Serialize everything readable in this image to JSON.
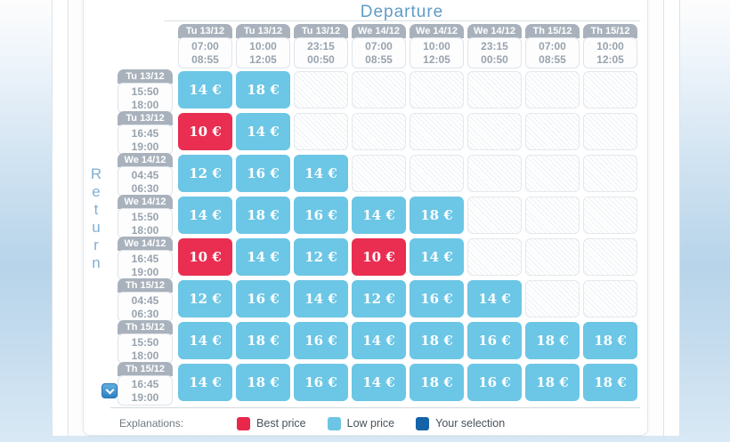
{
  "title": "Departure",
  "return_label": "Return",
  "departures": [
    {
      "date": "Tu 13/12",
      "start": "07:00",
      "end": "08:55"
    },
    {
      "date": "Tu 13/12",
      "start": "10:00",
      "end": "12:05"
    },
    {
      "date": "Tu 13/12",
      "start": "23:15",
      "end": "00:50"
    },
    {
      "date": "We 14/12",
      "start": "07:00",
      "end": "08:55"
    },
    {
      "date": "We 14/12",
      "start": "10:00",
      "end": "12:05"
    },
    {
      "date": "We 14/12",
      "start": "23:15",
      "end": "00:50"
    },
    {
      "date": "Th 15/12",
      "start": "07:00",
      "end": "08:55"
    },
    {
      "date": "Th 15/12",
      "start": "10:00",
      "end": "12:05"
    }
  ],
  "returns": [
    {
      "date": "Tu 13/12",
      "start": "15:50",
      "end": "18:00"
    },
    {
      "date": "Tu 13/12",
      "start": "16:45",
      "end": "19:00"
    },
    {
      "date": "We 14/12",
      "start": "04:45",
      "end": "06:30"
    },
    {
      "date": "We 14/12",
      "start": "15:50",
      "end": "18:00"
    },
    {
      "date": "We 14/12",
      "start": "16:45",
      "end": "19:00"
    },
    {
      "date": "Th 15/12",
      "start": "04:45",
      "end": "06:30"
    },
    {
      "date": "Th 15/12",
      "start": "15:50",
      "end": "18:00"
    },
    {
      "date": "Th 15/12",
      "start": "16:45",
      "end": "19:00"
    }
  ],
  "matrix": [
    [
      {
        "price": "14 €",
        "type": "low"
      },
      {
        "price": "18 €",
        "type": "low"
      },
      null,
      null,
      null,
      null,
      null,
      null
    ],
    [
      {
        "price": "10 €",
        "type": "best"
      },
      {
        "price": "14 €",
        "type": "low"
      },
      null,
      null,
      null,
      null,
      null,
      null
    ],
    [
      {
        "price": "12 €",
        "type": "low"
      },
      {
        "price": "16 €",
        "type": "low"
      },
      {
        "price": "14 €",
        "type": "low"
      },
      null,
      null,
      null,
      null,
      null
    ],
    [
      {
        "price": "14 €",
        "type": "low"
      },
      {
        "price": "18 €",
        "type": "low"
      },
      {
        "price": "16 €",
        "type": "low"
      },
      {
        "price": "14 €",
        "type": "low"
      },
      {
        "price": "18 €",
        "type": "low"
      },
      null,
      null,
      null
    ],
    [
      {
        "price": "10 €",
        "type": "best"
      },
      {
        "price": "14 €",
        "type": "low"
      },
      {
        "price": "12 €",
        "type": "low"
      },
      {
        "price": "10 €",
        "type": "best"
      },
      {
        "price": "14 €",
        "type": "low"
      },
      null,
      null,
      null
    ],
    [
      {
        "price": "12 €",
        "type": "low"
      },
      {
        "price": "16 €",
        "type": "low"
      },
      {
        "price": "14 €",
        "type": "low"
      },
      {
        "price": "12 €",
        "type": "low"
      },
      {
        "price": "16 €",
        "type": "low"
      },
      {
        "price": "14 €",
        "type": "low"
      },
      null,
      null
    ],
    [
      {
        "price": "14 €",
        "type": "low"
      },
      {
        "price": "18 €",
        "type": "low"
      },
      {
        "price": "16 €",
        "type": "low"
      },
      {
        "price": "14 €",
        "type": "low"
      },
      {
        "price": "18 €",
        "type": "low"
      },
      {
        "price": "16 €",
        "type": "low"
      },
      {
        "price": "18 €",
        "type": "low"
      },
      {
        "price": "18 €",
        "type": "low"
      }
    ],
    [
      {
        "price": "14 €",
        "type": "low"
      },
      {
        "price": "18 €",
        "type": "low"
      },
      {
        "price": "16 €",
        "type": "low"
      },
      {
        "price": "14 €",
        "type": "low"
      },
      {
        "price": "18 €",
        "type": "low"
      },
      {
        "price": "16 €",
        "type": "low"
      },
      {
        "price": "18 €",
        "type": "low"
      },
      {
        "price": "18 €",
        "type": "low"
      }
    ]
  ],
  "legend": {
    "label": "Explanations:",
    "items": [
      {
        "label": "Best price",
        "type": "best",
        "color": "#e8274b"
      },
      {
        "label": "Low price",
        "type": "low",
        "color": "#6cc5e4"
      },
      {
        "label": "Your selection",
        "type": "selection",
        "color": "#1563a8"
      }
    ]
  },
  "colors": {
    "best_price": "#e92e52",
    "low_price": "#6cc6e5",
    "your_selection": "#1563a8",
    "accent": "#5f9cc5",
    "header_tab": "#a9b2bc"
  }
}
